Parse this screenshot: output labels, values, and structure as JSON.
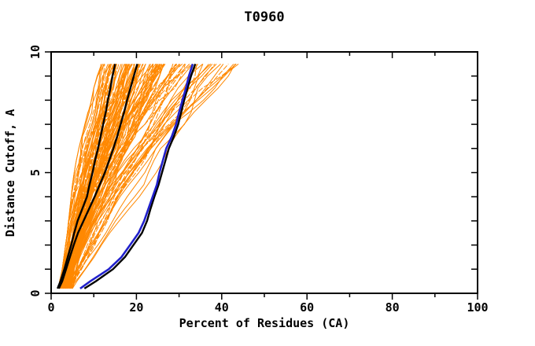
{
  "chart_data": {
    "type": "line",
    "title": "T0960",
    "xlabel": "Percent of Residues (CA)",
    "ylabel": "Distance Cutoff, A",
    "xlim": [
      0,
      100
    ],
    "ylim": [
      0,
      10
    ],
    "x_major_ticks": [
      0,
      20,
      40,
      60,
      80,
      100
    ],
    "x_minor_ticks": [
      10,
      30,
      50,
      70,
      90
    ],
    "y_ticks": [
      0,
      1,
      2,
      3,
      4,
      5,
      6,
      7,
      8,
      9,
      10
    ],
    "y_labeled_ticks": [
      0,
      5,
      10
    ],
    "grid": false,
    "legend": "none",
    "background_color": "#ffffff",
    "axis_color": "#000000",
    "ensemble": {
      "label": "server-model-curves",
      "color": "#ff8800",
      "count": 120,
      "seed": 12,
      "stroke_width": 1,
      "y_levels": [
        0.2,
        0.5,
        1,
        1.5,
        2,
        2.5,
        3,
        3.5,
        4,
        4.5,
        5,
        5.5,
        6,
        6.5,
        7,
        7.5,
        8,
        8.5,
        9,
        9.5
      ],
      "envelope_x_left": [
        1.2,
        2.0,
        2.6,
        3.0,
        3.4,
        3.8,
        4.1,
        4.4,
        4.7,
        5.0,
        5.4,
        5.9,
        6.5,
        7.2,
        7.9,
        8.6,
        9.3,
        10.0,
        10.8,
        11.7
      ],
      "envelope_x_right": [
        5,
        8,
        12,
        15,
        18,
        20.5,
        23,
        25.5,
        27.5,
        29.5,
        31.5,
        33.5,
        35.5,
        37,
        38.5,
        40.5,
        42.5,
        44.5,
        47,
        50
      ]
    },
    "highlighted_series": [
      {
        "name": "best-model-black-1",
        "color": "#000000",
        "stroke_width": 2.4,
        "points": [
          [
            1.5,
            0.2
          ],
          [
            2.2,
            0.5
          ],
          [
            3.1,
            1
          ],
          [
            3.9,
            1.5
          ],
          [
            4.7,
            2
          ],
          [
            5.4,
            2.5
          ],
          [
            6.2,
            3
          ],
          [
            7.3,
            3.5
          ],
          [
            8.4,
            4
          ],
          [
            9.0,
            4.5
          ],
          [
            9.7,
            5
          ],
          [
            10.3,
            5.5
          ],
          [
            11.0,
            6
          ],
          [
            11.6,
            6.5
          ],
          [
            12.2,
            7
          ],
          [
            12.8,
            7.5
          ],
          [
            13.3,
            8
          ],
          [
            13.9,
            8.5
          ],
          [
            14.4,
            9
          ],
          [
            15.0,
            9.5
          ]
        ]
      },
      {
        "name": "best-model-black-2",
        "color": "#000000",
        "stroke_width": 2.4,
        "points": [
          [
            1.8,
            0.2
          ],
          [
            2.6,
            0.5
          ],
          [
            3.5,
            1
          ],
          [
            4.4,
            1.5
          ],
          [
            5.3,
            2
          ],
          [
            6.3,
            2.5
          ],
          [
            7.6,
            3
          ],
          [
            8.9,
            3.5
          ],
          [
            10.2,
            4
          ],
          [
            11.4,
            4.5
          ],
          [
            12.6,
            5
          ],
          [
            13.6,
            5.5
          ],
          [
            14.6,
            6
          ],
          [
            15.5,
            6.5
          ],
          [
            16.3,
            7
          ],
          [
            17.1,
            7.5
          ],
          [
            17.8,
            8
          ],
          [
            18.6,
            8.5
          ],
          [
            19.4,
            9
          ],
          [
            20.2,
            9.5
          ]
        ]
      },
      {
        "name": "best-model-black-3",
        "color": "#000000",
        "stroke_width": 2.4,
        "points": [
          [
            7.8,
            0.2
          ],
          [
            10.5,
            0.5
          ],
          [
            14.5,
            1
          ],
          [
            17.3,
            1.5
          ],
          [
            19.3,
            2
          ],
          [
            21.3,
            2.5
          ],
          [
            22.5,
            3
          ],
          [
            23.3,
            3.5
          ],
          [
            24.2,
            4
          ],
          [
            25.2,
            4.5
          ],
          [
            26.0,
            5
          ],
          [
            26.8,
            5.5
          ],
          [
            27.6,
            6
          ],
          [
            28.8,
            6.5
          ],
          [
            29.8,
            7
          ],
          [
            30.5,
            7.5
          ],
          [
            31.2,
            8
          ],
          [
            32.0,
            8.5
          ],
          [
            32.8,
            9
          ],
          [
            33.8,
            9.5
          ]
        ]
      },
      {
        "name": "highlight-model-blue",
        "color": "#2020cc",
        "stroke_width": 2.6,
        "points": [
          [
            6.8,
            0.2
          ],
          [
            9.2,
            0.5
          ],
          [
            13.5,
            1
          ],
          [
            16.5,
            1.5
          ],
          [
            18.5,
            2
          ],
          [
            20.5,
            2.5
          ],
          [
            21.8,
            3
          ],
          [
            22.8,
            3.5
          ],
          [
            23.8,
            4
          ],
          [
            24.8,
            4.5
          ],
          [
            25.4,
            5
          ],
          [
            26.2,
            5.5
          ],
          [
            27.0,
            6
          ],
          [
            28.3,
            6.5
          ],
          [
            29.3,
            7
          ],
          [
            30.0,
            7.5
          ],
          [
            30.8,
            8
          ],
          [
            31.6,
            8.5
          ],
          [
            32.3,
            9
          ],
          [
            33.2,
            9.5
          ]
        ]
      }
    ]
  }
}
